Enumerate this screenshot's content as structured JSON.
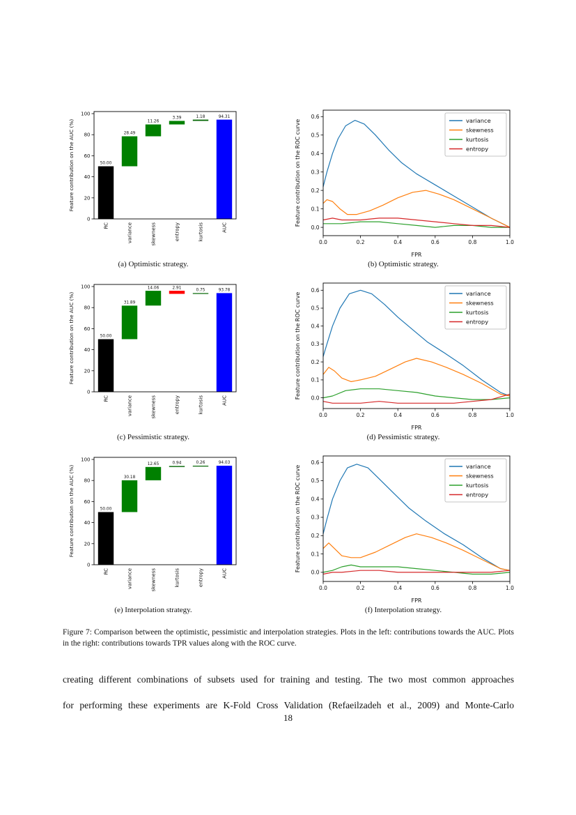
{
  "page": {
    "number": "18"
  },
  "figure": {
    "caption": "Figure 7: Comparison between the optimistic, pessimistic and interpolation strategies. Plots in the left: contributions towards the AUC. Plots in the right: contributions towards TPR values along with the ROC curve.",
    "subcaptions": {
      "a": "(a) Optimistic strategy.",
      "b": "(b) Optimistic strategy.",
      "c": "(c) Pessimistic strategy.",
      "d": "(d) Pessimistic strategy.",
      "e": "(e) Interpolation strategy.",
      "f": "(f) Interpolation strategy."
    }
  },
  "body": {
    "line1": "creating different combinations of subsets used for training and testing. The two most common approaches",
    "line2": "for performing these experiments are K-Fold Cross Validation (Refaeilzadeh et al., 2009) and Monte-Carlo"
  },
  "chart_data": [
    {
      "id": "a",
      "type": "bar",
      "subtype": "waterfall",
      "ylabel": "Feature contribution on the AUC (%)",
      "ylim": [
        0,
        102
      ],
      "yticks": [
        0,
        20,
        40,
        60,
        80,
        100
      ],
      "categories": [
        "RC",
        "variance",
        "skewness",
        "entropy",
        "kurtosis",
        "AUC"
      ],
      "values": [
        50.0,
        28.49,
        11.26,
        3.39,
        1.18,
        94.31
      ],
      "labels": [
        "50.00",
        "28.49",
        "11.26",
        "3.39",
        "1.18",
        "94.31"
      ],
      "bar_types": [
        "total",
        "delta",
        "delta",
        "delta",
        "delta",
        "total"
      ],
      "colors": [
        "#000000",
        "#008000",
        "#008000",
        "#008000",
        "#006400",
        "#0000ff"
      ]
    },
    {
      "id": "b",
      "type": "line",
      "xlabel": "FPR",
      "ylabel": "Feature contribution on the ROC curve",
      "xlim": [
        0,
        1
      ],
      "ylim": [
        -0.045,
        0.635
      ],
      "xticks": [
        0,
        0.2,
        0.4,
        0.6,
        0.8,
        1
      ],
      "yticks": [
        0,
        0.1,
        0.2,
        0.3,
        0.4,
        0.5,
        0.6
      ],
      "legend_position": "upper right",
      "series": [
        {
          "name": "variance",
          "color": "#1f77b4",
          "x": [
            0,
            0.02,
            0.05,
            0.08,
            0.12,
            0.17,
            0.22,
            0.28,
            0.35,
            0.42,
            0.5,
            0.6,
            0.7,
            0.8,
            0.9,
            1.0
          ],
          "y": [
            0.22,
            0.3,
            0.4,
            0.48,
            0.55,
            0.58,
            0.56,
            0.5,
            0.42,
            0.35,
            0.29,
            0.23,
            0.17,
            0.11,
            0.05,
            0.0
          ]
        },
        {
          "name": "skewness",
          "color": "#ff7f0e",
          "x": [
            0,
            0.02,
            0.05,
            0.09,
            0.13,
            0.18,
            0.25,
            0.32,
            0.4,
            0.48,
            0.55,
            0.62,
            0.7,
            0.8,
            0.9,
            1.0
          ],
          "y": [
            0.13,
            0.15,
            0.14,
            0.1,
            0.07,
            0.07,
            0.09,
            0.12,
            0.16,
            0.19,
            0.2,
            0.18,
            0.15,
            0.1,
            0.05,
            0.0
          ]
        },
        {
          "name": "kurtosis",
          "color": "#2ca02c",
          "x": [
            0,
            0.05,
            0.1,
            0.2,
            0.3,
            0.4,
            0.5,
            0.6,
            0.7,
            0.8,
            0.9,
            1.0
          ],
          "y": [
            0.02,
            0.02,
            0.02,
            0.03,
            0.03,
            0.02,
            0.01,
            0.0,
            0.01,
            0.01,
            0.0,
            0.0
          ]
        },
        {
          "name": "entropy",
          "color": "#d62728",
          "x": [
            0,
            0.05,
            0.1,
            0.2,
            0.3,
            0.4,
            0.5,
            0.6,
            0.7,
            0.8,
            0.9,
            1.0
          ],
          "y": [
            0.04,
            0.05,
            0.04,
            0.04,
            0.05,
            0.05,
            0.04,
            0.03,
            0.02,
            0.01,
            0.01,
            0.0
          ]
        }
      ]
    },
    {
      "id": "c",
      "type": "bar",
      "subtype": "waterfall",
      "ylabel": "Feature contribution on the AUC (%)",
      "ylim": [
        0,
        102
      ],
      "yticks": [
        0,
        20,
        40,
        60,
        80,
        100
      ],
      "categories": [
        "RC",
        "variance",
        "skewness",
        "entropy",
        "kurtosis",
        "AUC"
      ],
      "values": [
        50.0,
        31.89,
        14.06,
        -2.91,
        0.75,
        93.78
      ],
      "labels": [
        "50.00",
        "31.89",
        "14.06",
        "2.91",
        "0.75",
        "93.78"
      ],
      "bar_types": [
        "total",
        "delta",
        "delta",
        "delta",
        "delta",
        "total"
      ],
      "colors": [
        "#000000",
        "#008000",
        "#008000",
        "#ff0000",
        "#006400",
        "#0000ff"
      ]
    },
    {
      "id": "d",
      "type": "line",
      "xlabel": "FPR",
      "ylabel": "Feature contribution on the ROC curve",
      "xlim": [
        0,
        1
      ],
      "ylim": [
        -0.06,
        0.64
      ],
      "xticks": [
        0,
        0.2,
        0.4,
        0.6,
        0.8,
        1
      ],
      "yticks": [
        0,
        0.1,
        0.2,
        0.3,
        0.4,
        0.5,
        0.6
      ],
      "legend_position": "upper right",
      "series": [
        {
          "name": "variance",
          "color": "#1f77b4",
          "x": [
            0,
            0.02,
            0.05,
            0.09,
            0.14,
            0.2,
            0.26,
            0.33,
            0.4,
            0.48,
            0.56,
            0.65,
            0.75,
            0.85,
            0.95,
            1.0
          ],
          "y": [
            0.23,
            0.3,
            0.4,
            0.5,
            0.58,
            0.6,
            0.58,
            0.52,
            0.45,
            0.38,
            0.31,
            0.25,
            0.18,
            0.1,
            0.03,
            0.01
          ]
        },
        {
          "name": "skewness",
          "color": "#ff7f0e",
          "x": [
            0,
            0.03,
            0.06,
            0.1,
            0.15,
            0.2,
            0.28,
            0.36,
            0.44,
            0.5,
            0.58,
            0.66,
            0.75,
            0.85,
            0.95,
            1.0
          ],
          "y": [
            0.13,
            0.17,
            0.15,
            0.11,
            0.09,
            0.1,
            0.12,
            0.16,
            0.2,
            0.22,
            0.2,
            0.17,
            0.13,
            0.08,
            0.02,
            0.01
          ]
        },
        {
          "name": "kurtosis",
          "color": "#2ca02c",
          "x": [
            0,
            0.05,
            0.12,
            0.2,
            0.3,
            0.4,
            0.5,
            0.6,
            0.7,
            0.8,
            0.9,
            1.0
          ],
          "y": [
            0.0,
            0.01,
            0.04,
            0.05,
            0.05,
            0.04,
            0.03,
            0.01,
            0.0,
            -0.01,
            -0.01,
            0.0
          ]
        },
        {
          "name": "entropy",
          "color": "#d62728",
          "x": [
            0,
            0.05,
            0.12,
            0.2,
            0.3,
            0.4,
            0.5,
            0.6,
            0.7,
            0.8,
            0.9,
            1.0
          ],
          "y": [
            -0.02,
            -0.03,
            -0.03,
            -0.03,
            -0.02,
            -0.03,
            -0.03,
            -0.03,
            -0.03,
            -0.02,
            -0.01,
            0.02
          ]
        }
      ]
    },
    {
      "id": "e",
      "type": "bar",
      "subtype": "waterfall",
      "ylabel": "Feature contribution on the AUC (%)",
      "ylim": [
        0,
        102
      ],
      "yticks": [
        0,
        20,
        40,
        60,
        80,
        100
      ],
      "categories": [
        "RC",
        "variance",
        "skewness",
        "kurtosis",
        "entropy",
        "AUC"
      ],
      "values": [
        50.0,
        30.18,
        12.65,
        0.94,
        0.26,
        94.03
      ],
      "labels": [
        "50.00",
        "30.18",
        "12.65",
        "0.94",
        "0.26",
        "94.03"
      ],
      "bar_types": [
        "total",
        "delta",
        "delta",
        "delta",
        "delta",
        "total"
      ],
      "colors": [
        "#000000",
        "#008000",
        "#008000",
        "#006400",
        "#006400",
        "#0000ff"
      ]
    },
    {
      "id": "f",
      "type": "line",
      "xlabel": "FPR",
      "ylabel": "Feature contribution on the ROC curve",
      "xlim": [
        0,
        1
      ],
      "ylim": [
        -0.05,
        0.635
      ],
      "xticks": [
        0,
        0.2,
        0.4,
        0.6,
        0.8,
        1
      ],
      "yticks": [
        0,
        0.1,
        0.2,
        0.3,
        0.4,
        0.5,
        0.6
      ],
      "legend_position": "upper right",
      "series": [
        {
          "name": "variance",
          "color": "#1f77b4",
          "x": [
            0,
            0.02,
            0.05,
            0.09,
            0.13,
            0.18,
            0.24,
            0.3,
            0.38,
            0.46,
            0.55,
            0.65,
            0.75,
            0.85,
            0.95,
            1.0
          ],
          "y": [
            0.21,
            0.29,
            0.4,
            0.5,
            0.57,
            0.59,
            0.57,
            0.51,
            0.43,
            0.35,
            0.28,
            0.21,
            0.15,
            0.08,
            0.02,
            0.01
          ]
        },
        {
          "name": "skewness",
          "color": "#ff7f0e",
          "x": [
            0,
            0.03,
            0.06,
            0.1,
            0.15,
            0.2,
            0.28,
            0.36,
            0.44,
            0.5,
            0.58,
            0.66,
            0.75,
            0.85,
            0.95,
            1.0
          ],
          "y": [
            0.13,
            0.16,
            0.13,
            0.09,
            0.08,
            0.08,
            0.11,
            0.15,
            0.19,
            0.21,
            0.19,
            0.16,
            0.12,
            0.07,
            0.02,
            0.01
          ]
        },
        {
          "name": "kurtosis",
          "color": "#2ca02c",
          "x": [
            0,
            0.05,
            0.1,
            0.15,
            0.2,
            0.3,
            0.4,
            0.5,
            0.6,
            0.7,
            0.8,
            0.9,
            1.0
          ],
          "y": [
            0.0,
            0.01,
            0.03,
            0.04,
            0.03,
            0.03,
            0.03,
            0.02,
            0.01,
            0.0,
            -0.01,
            -0.01,
            0.0
          ]
        },
        {
          "name": "entropy",
          "color": "#d62728",
          "x": [
            0,
            0.05,
            0.1,
            0.2,
            0.3,
            0.4,
            0.5,
            0.6,
            0.7,
            0.8,
            0.9,
            1.0
          ],
          "y": [
            -0.01,
            0.0,
            0.0,
            0.01,
            0.01,
            0.0,
            0.0,
            0.0,
            0.0,
            0.0,
            0.0,
            0.01
          ]
        }
      ]
    }
  ]
}
